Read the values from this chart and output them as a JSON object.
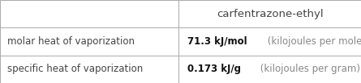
{
  "title": "carfentrazone-ethyl",
  "rows": [
    {
      "label": "molar heat of vaporization",
      "value_bold": "71.3 kJ/mol",
      "value_light": " (kilojoules per mole)"
    },
    {
      "label": "specific heat of vaporization",
      "value_bold": "0.173 kJ/g",
      "value_light": " (kilojoules per gram)"
    }
  ],
  "col_split": 0.495,
  "background_color": "#ffffff",
  "border_color": "#aaaaaa",
  "text_color_label": "#444444",
  "text_color_bold": "#111111",
  "text_color_light": "#888888",
  "font_size_title": 9.5,
  "font_size_label": 8.5,
  "font_size_value_bold": 8.5,
  "font_size_value_light": 8.5
}
